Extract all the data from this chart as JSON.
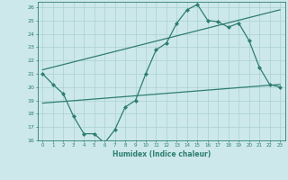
{
  "title": "",
  "xlabel": "Humidex (Indice chaleur)",
  "ylabel": "",
  "xlim": [
    -0.5,
    23.5
  ],
  "ylim": [
    16,
    26.4
  ],
  "yticks": [
    16,
    17,
    18,
    19,
    20,
    21,
    22,
    23,
    24,
    25,
    26
  ],
  "xticks": [
    0,
    1,
    2,
    3,
    4,
    5,
    6,
    7,
    8,
    9,
    10,
    11,
    12,
    13,
    14,
    15,
    16,
    17,
    18,
    19,
    20,
    21,
    22,
    23
  ],
  "bg_color": "#cce8ea",
  "grid_color": "#aad0d4",
  "line_color": "#2e7d72",
  "line_width": 0.9,
  "marker": "D",
  "marker_size": 2.0,
  "series_main": {
    "x": [
      0,
      1,
      2,
      3,
      4,
      5,
      6,
      7,
      8,
      9,
      10,
      11,
      12,
      13,
      14,
      15,
      16,
      17,
      18,
      19,
      20,
      21,
      22,
      23
    ],
    "y": [
      21.0,
      20.2,
      19.5,
      17.8,
      16.5,
      16.5,
      15.8,
      16.8,
      18.5,
      19.0,
      21.0,
      22.8,
      23.3,
      24.8,
      25.8,
      26.2,
      25.0,
      24.9,
      24.5,
      24.8,
      23.5,
      21.5,
      20.2,
      20.0
    ]
  },
  "series_upper": {
    "x": [
      0,
      23
    ],
    "y": [
      21.3,
      25.8
    ]
  },
  "series_lower": {
    "x": [
      0,
      23
    ],
    "y": [
      18.8,
      20.2
    ]
  }
}
